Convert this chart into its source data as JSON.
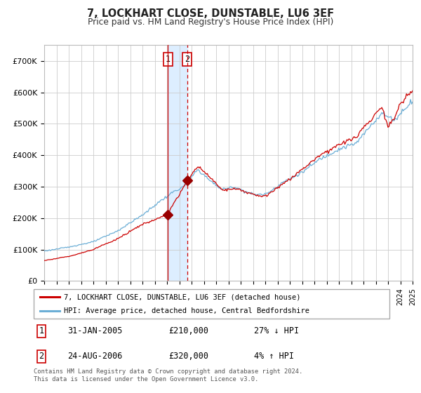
{
  "title": "7, LOCKHART CLOSE, DUNSTABLE, LU6 3EF",
  "subtitle": "Price paid vs. HM Land Registry's House Price Index (HPI)",
  "legend_line1": "7, LOCKHART CLOSE, DUNSTABLE, LU6 3EF (detached house)",
  "legend_line2": "HPI: Average price, detached house, Central Bedfordshire",
  "transaction1_date": "31-JAN-2005",
  "transaction1_price": "£210,000",
  "transaction1_hpi": "27% ↓ HPI",
  "transaction2_date": "24-AUG-2006",
  "transaction2_price": "£320,000",
  "transaction2_hpi": "4% ↑ HPI",
  "footer": "Contains HM Land Registry data © Crown copyright and database right 2024.\nThis data is licensed under the Open Government Licence v3.0.",
  "hpi_color": "#6baed6",
  "price_color": "#cc0000",
  "marker_color": "#990000",
  "vline1_color": "#cc0000",
  "vline2_color": "#cc0000",
  "shade_color": "#ddeeff",
  "grid_color": "#cccccc",
  "bg_color": "#ffffff",
  "ylim": [
    0,
    750000
  ],
  "yticks": [
    0,
    100000,
    200000,
    300000,
    400000,
    500000,
    600000,
    700000
  ],
  "ytick_labels": [
    "£0",
    "£100K",
    "£200K",
    "£300K",
    "£400K",
    "£500K",
    "£600K",
    "£700K"
  ],
  "t1_year": 2005.08,
  "t2_year": 2006.64,
  "t1_price": 210000,
  "t2_price": 320000
}
